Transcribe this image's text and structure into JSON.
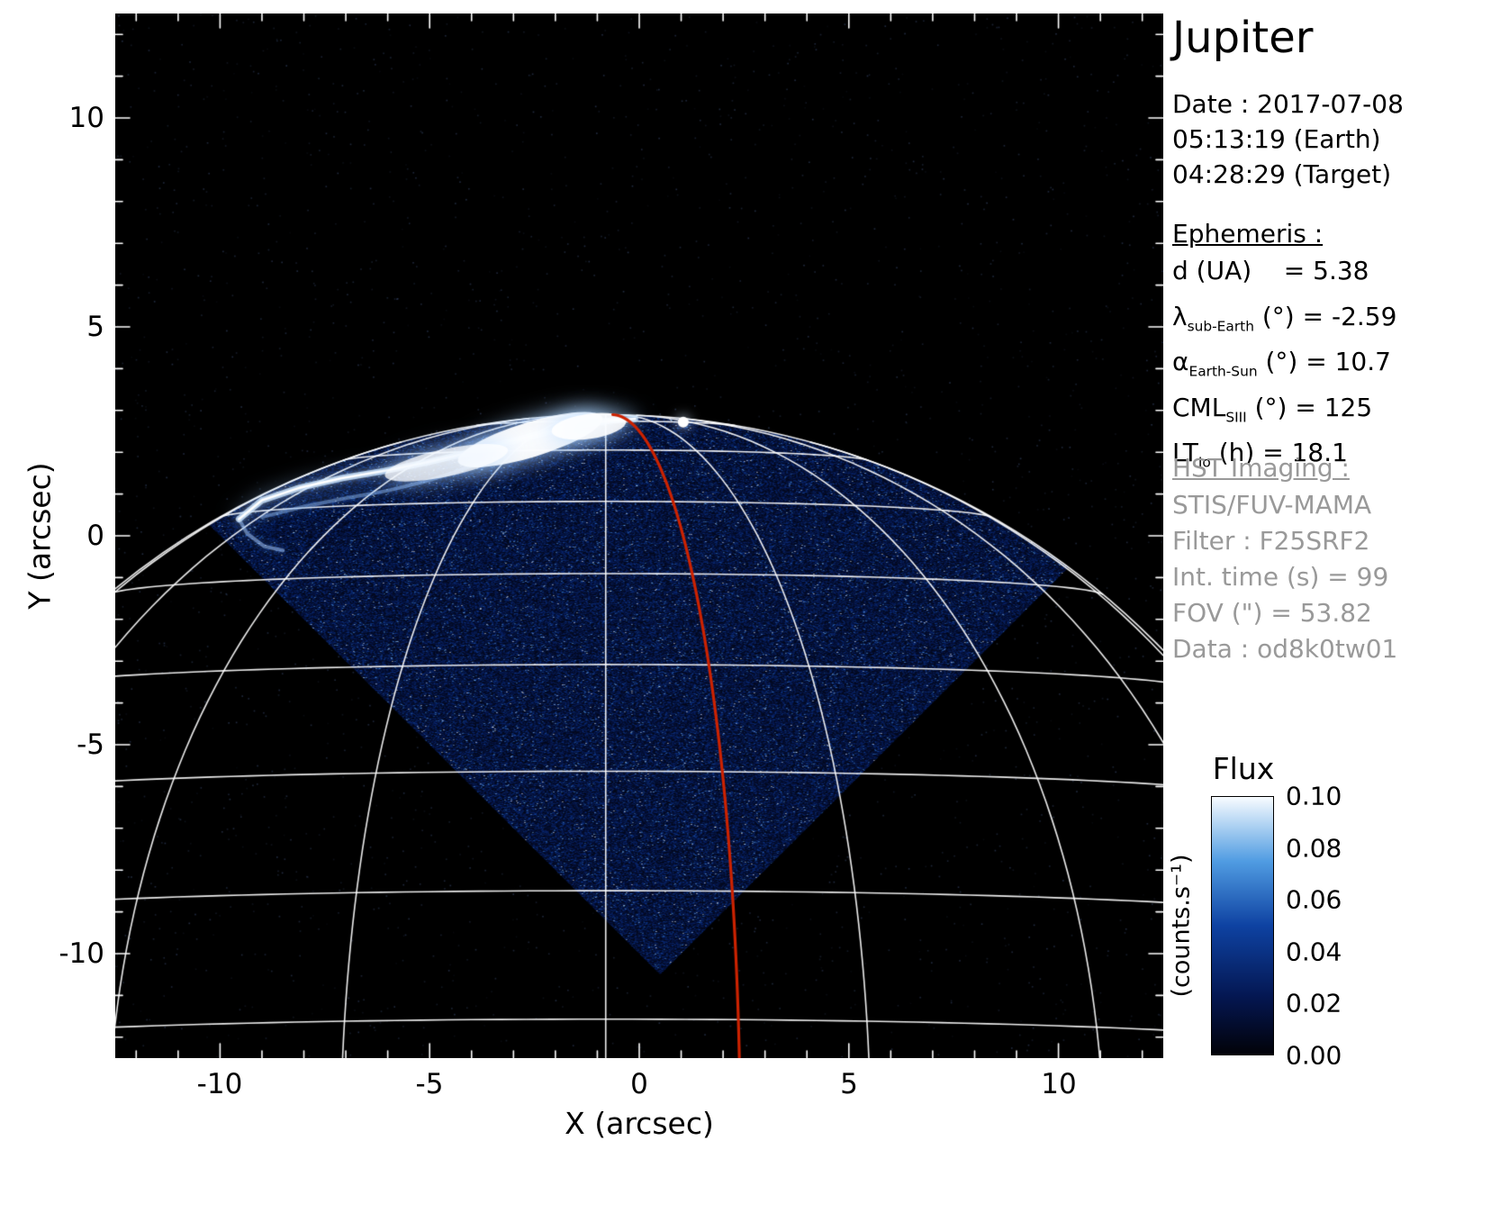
{
  "title": "Jupiter",
  "info_panel": {
    "date_line": "Date : 2017-07-08",
    "time_earth": "05:13:19 (Earth)",
    "time_target": "04:28:29 (Target)",
    "ephemeris_heading": "Ephemeris :",
    "ephemeris": [
      {
        "pre": "d",
        "sub": "",
        "post": " (UA)    = 5.38"
      },
      {
        "pre": "λ",
        "sub": "sub-Earth",
        "post": " (°) = -2.59"
      },
      {
        "pre": "α",
        "sub": "Earth-Sun",
        "post": " (°) = 10.7"
      },
      {
        "pre": "CML",
        "sub": "SIII",
        "post": " (°) = 125"
      },
      {
        "pre": "LT",
        "sub": "Io",
        "post": " (h) = 18.1"
      }
    ],
    "hst_heading": "HST Imaging :",
    "hst_lines": [
      "STIS/FUV-MAMA",
      "Filter : F25SRF2",
      "Int. time (s) = 99",
      "FOV (\") = 53.82",
      "Data : od8k0tw01"
    ]
  },
  "chart_data": {
    "type": "heatmap",
    "xlabel": "X (arcsec)",
    "ylabel": "Y (arcsec)",
    "xlim": [
      -12.5,
      12.5
    ],
    "ylim": [
      -12.5,
      12.5
    ],
    "xticks": [
      -10,
      -5,
      0,
      5,
      10
    ],
    "yticks": [
      -10,
      -5,
      0,
      5,
      10
    ],
    "xtick_labels": [
      "-10",
      "-5",
      "0",
      "5",
      "10"
    ],
    "ytick_labels": [
      "10",
      "5",
      "0",
      "-5",
      "-10"
    ],
    "colorbar": {
      "title": "Flux",
      "unit": "(counts.s⁻¹)",
      "min": 0.0,
      "max": 0.1,
      "ticks": [
        "0.10",
        "0.08",
        "0.06",
        "0.04",
        "0.02",
        "0.00"
      ],
      "stops": [
        [
          0,
          [
            2,
            2,
            8
          ]
        ],
        [
          0.22,
          [
            4,
            22,
            80
          ]
        ],
        [
          0.5,
          [
            14,
            66,
            162
          ]
        ],
        [
          0.75,
          [
            80,
            156,
            226
          ]
        ],
        [
          1,
          [
            248,
            252,
            255
          ]
        ]
      ]
    },
    "features": {
      "background_color": "#000000",
      "grid_color": "#ffffff",
      "planet_center": [
        -0.8,
        -15.6
      ],
      "planet_radius_arcsec": 18.5,
      "subearth_lat_deg": -2.59,
      "grid_lat_deg": [
        80,
        70,
        60,
        50,
        40,
        30,
        20,
        10
      ],
      "grid_lon_deg": [
        -80,
        -60,
        -40,
        -20,
        0,
        20,
        40,
        60,
        80
      ],
      "red_meridian_lon_deg": 10,
      "red_meridian_color": "#cc2200",
      "fov_diamond": [
        [
          0.5,
          -10.5
        ],
        [
          -10.3,
          0.3
        ],
        [
          0.5,
          11.1
        ],
        [
          11.3,
          0.3
        ]
      ],
      "noise_top_arcsec": 3.3,
      "aurora": {
        "main": [
          [
            -9.55,
            0.4
          ],
          [
            -9.0,
            0.85
          ],
          [
            -8.1,
            1.15
          ],
          [
            -7.1,
            1.38
          ],
          [
            -6.1,
            1.55
          ],
          [
            -5.1,
            1.75
          ],
          [
            -4.1,
            1.98
          ],
          [
            -3.1,
            2.25
          ],
          [
            -2.2,
            2.48
          ],
          [
            -1.4,
            2.65
          ],
          [
            -0.7,
            2.76
          ],
          [
            -0.1,
            2.8
          ]
        ],
        "inner": [
          [
            -9.0,
            0.45
          ],
          [
            -8.0,
            0.7
          ],
          [
            -7.0,
            0.9
          ],
          [
            -6.0,
            1.08
          ],
          [
            -5.1,
            1.3
          ],
          [
            -4.4,
            1.52
          ],
          [
            -3.8,
            1.75
          ]
        ],
        "hook": [
          [
            -9.55,
            0.4
          ],
          [
            -9.35,
            0.05
          ],
          [
            -8.95,
            -0.25
          ],
          [
            -8.5,
            -0.35
          ]
        ],
        "blobs": [
          {
            "x": -2.6,
            "y": 2.3,
            "rx": 1.8,
            "ry": 0.42,
            "rot": -17,
            "a": 0.95
          },
          {
            "x": -4.6,
            "y": 1.75,
            "rx": 1.5,
            "ry": 0.33,
            "rot": -12,
            "a": 0.75
          },
          {
            "x": -1.2,
            "y": 2.62,
            "rx": 0.9,
            "ry": 0.3,
            "rot": -8,
            "a": 0.9
          }
        ],
        "spot": {
          "x": 1.05,
          "y": 2.72,
          "r": 0.13
        }
      }
    }
  }
}
